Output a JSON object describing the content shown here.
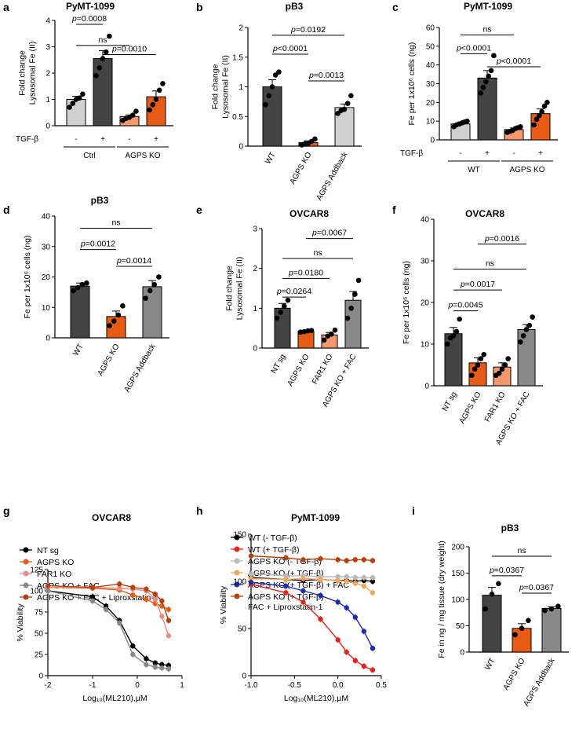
{
  "colors": {
    "black": "#000000",
    "light_gray": "#d0d0d0",
    "dark_gray": "#444444",
    "mid_gray": "#888888",
    "orange": "#e85b14",
    "light_orange": "#f4996b",
    "pink": "#ef8a8a",
    "red": "#e8221a",
    "blue": "#1f2bb2",
    "brown": "#b8400a",
    "peach": "#f5a55b",
    "silver": "#b9b9b9"
  },
  "chart_data": [
    {
      "id": "a",
      "type": "bar",
      "letter": "a",
      "title": "PyMT-1099",
      "ylabel": [
        "Fold change",
        "Lysosomal Fe (II)"
      ],
      "ylim": [
        0,
        4
      ],
      "yticks": [
        0,
        1,
        2,
        3,
        4
      ],
      "treatment_label": "TGF-β",
      "bars": [
        {
          "sign": "-",
          "value": 1.0,
          "err": 0.12,
          "fill": "#d0d0d0",
          "points": [
            0.7,
            0.85,
            1.0,
            1.05,
            1.2
          ]
        },
        {
          "sign": "+",
          "value": 2.55,
          "err": 0.3,
          "fill": "#444444",
          "points": [
            1.9,
            2.2,
            2.55,
            2.8,
            3.4
          ]
        },
        {
          "sign": "-",
          "value": 0.35,
          "err": 0.06,
          "fill": "#f4996b",
          "points": [
            0.2,
            0.28,
            0.32,
            0.4,
            0.55
          ]
        },
        {
          "sign": "+",
          "value": 1.1,
          "err": 0.22,
          "fill": "#e85b14",
          "points": [
            0.6,
            0.8,
            1.0,
            1.35,
            1.6
          ]
        }
      ],
      "groups": [
        {
          "label": "Ctrl",
          "from": 0,
          "to": 1
        },
        {
          "label": "AGPS KO",
          "from": 2,
          "to": 3
        }
      ],
      "comparisons": [
        {
          "from": 0,
          "to": 1,
          "y": 3.85,
          "label": "p=0.0008"
        },
        {
          "from": 0,
          "to": 2,
          "y": 3.05,
          "label": "ns"
        },
        {
          "from": 1,
          "to": 3,
          "y": 2.7,
          "label": "p=0.0010"
        }
      ]
    },
    {
      "id": "b",
      "type": "bar",
      "letter": "b",
      "title": "pB3",
      "ylabel": [
        "Fold change",
        "Lysosomal Fe (II)"
      ],
      "ylim": [
        0,
        2.0
      ],
      "yticks": [
        0.0,
        0.5,
        1.0,
        1.5,
        2.0
      ],
      "categories": [
        "WT",
        "AGPS KO",
        "AGPS Addback"
      ],
      "bars": [
        {
          "value": 1.0,
          "err": 0.12,
          "fill": "#444444",
          "points": [
            0.7,
            0.85,
            1.0,
            1.2,
            1.25
          ]
        },
        {
          "value": 0.06,
          "err": 0.03,
          "fill": "#e85b14",
          "points": [
            0.02,
            0.04,
            0.05,
            0.08,
            0.12
          ]
        },
        {
          "value": 0.65,
          "err": 0.06,
          "fill": "#d0d0d0",
          "points": [
            0.55,
            0.6,
            0.62,
            0.72,
            0.85
          ]
        }
      ],
      "comparisons": [
        {
          "from": 0,
          "to": 2,
          "y": 1.87,
          "label": "p=0.0192"
        },
        {
          "from": 0,
          "to": 1,
          "y": 1.55,
          "label": "p<0.0001"
        },
        {
          "from": 1,
          "to": 2,
          "y": 1.1,
          "label": "p=0.0013"
        }
      ]
    },
    {
      "id": "c",
      "type": "bar",
      "letter": "c",
      "title": "PyMT-1099",
      "ylabel": [
        "Fe per 1x10⁶ cells (ng)"
      ],
      "ylim": [
        0,
        60
      ],
      "yticks": [
        0,
        10,
        20,
        30,
        40,
        50,
        60
      ],
      "treatment_label": "TGF-β",
      "bars": [
        {
          "sign": "-",
          "value": 8.5,
          "err": 0.7,
          "fill": "#d0d0d0",
          "points": [
            7,
            8,
            8.5,
            9,
            9.5,
            10
          ]
        },
        {
          "sign": "+",
          "value": 33,
          "err": 4,
          "fill": "#444444",
          "points": [
            25,
            28,
            31,
            34,
            37,
            45
          ]
        },
        {
          "sign": "-",
          "value": 5.5,
          "err": 0.8,
          "fill": "#f4996b",
          "points": [
            4,
            4.5,
            5,
            6,
            6.5,
            7
          ]
        },
        {
          "sign": "+",
          "value": 14,
          "err": 2.5,
          "fill": "#e85b14",
          "points": [
            8,
            11,
            13,
            15,
            18,
            20
          ]
        }
      ],
      "groups": [
        {
          "label": "WT",
          "from": 0,
          "to": 1
        },
        {
          "label": "AGPS KO",
          "from": 2,
          "to": 3
        }
      ],
      "comparisons": [
        {
          "from": 0,
          "to": 2,
          "y": 56,
          "label": "ns"
        },
        {
          "from": 0,
          "to": 1,
          "y": 46,
          "label": "p<0.0001"
        },
        {
          "from": 1,
          "to": 3,
          "y": 39,
          "label": "p<0.0001"
        }
      ]
    },
    {
      "id": "d",
      "type": "bar",
      "letter": "d",
      "title": "pB3",
      "ylabel": [
        "Fe per 1x10⁶ cells (ng)"
      ],
      "ylim": [
        0,
        40
      ],
      "yticks": [
        0,
        10,
        20,
        30,
        40
      ],
      "categories": [
        "WT",
        "AGPS KO",
        "AGPS Addback"
      ],
      "bars": [
        {
          "value": 17,
          "err": 1,
          "fill": "#444444",
          "points": [
            15.5,
            16.5,
            17.5,
            18
          ]
        },
        {
          "value": 7,
          "err": 1.8,
          "fill": "#e85b14",
          "points": [
            4,
            5.5,
            7.5,
            10.5
          ]
        },
        {
          "value": 16.8,
          "err": 2,
          "fill": "#888888",
          "points": [
            13,
            15.5,
            17.5,
            20
          ]
        }
      ],
      "comparisons": [
        {
          "from": 0,
          "to": 2,
          "y": 36,
          "label": "ns"
        },
        {
          "from": 0,
          "to": 1,
          "y": 29,
          "label": "p=0.0012"
        },
        {
          "from": 1,
          "to": 2,
          "y": 23.5,
          "label": "p=0.0014"
        }
      ]
    },
    {
      "id": "e",
      "type": "bar",
      "letter": "e",
      "title": "OVCAR8",
      "ylabel": [
        "Fold change",
        "Lysosomal Fe (II)"
      ],
      "ylim": [
        0,
        3
      ],
      "yticks": [
        0,
        1,
        2,
        3
      ],
      "categories": [
        "NT sg",
        "AGPS KO",
        "FAR1 KO",
        "AGPS KO + FAC"
      ],
      "bars": [
        {
          "value": 1.0,
          "err": 0.12,
          "fill": "#444444",
          "points": [
            0.75,
            0.9,
            1.05,
            1.2
          ]
        },
        {
          "value": 0.42,
          "err": 0.02,
          "fill": "#e85b14",
          "points": [
            0.4,
            0.41,
            0.43,
            0.44
          ]
        },
        {
          "value": 0.33,
          "err": 0.06,
          "fill": "#f4996b",
          "points": [
            0.2,
            0.3,
            0.35,
            0.45
          ]
        },
        {
          "value": 1.2,
          "err": 0.22,
          "fill": "#888888",
          "points": [
            0.75,
            1.0,
            1.35,
            1.7
          ]
        }
      ],
      "comparisons": [
        {
          "from": 1,
          "to": 3,
          "y": 2.75,
          "label": "p=0.0067"
        },
        {
          "from": 0,
          "to": 3,
          "y": 2.25,
          "label": "ns"
        },
        {
          "from": 0,
          "to": 2,
          "y": 1.75,
          "label": "p=0.0180"
        },
        {
          "from": 0,
          "to": 1,
          "y": 1.28,
          "label": "p=0.0264"
        }
      ]
    },
    {
      "id": "f",
      "type": "bar",
      "letter": "f",
      "title": "OVCAR8",
      "ylabel": [
        "Fe per 1x10⁶ cells (ng)"
      ],
      "ylim": [
        0,
        40
      ],
      "yticks": [
        0,
        10,
        20,
        30,
        40
      ],
      "categories": [
        "NT sg",
        "AGPS KO",
        "FAR1 KO",
        "AGPS KO + FAC"
      ],
      "bars": [
        {
          "value": 12.5,
          "err": 1.5,
          "fill": "#444444",
          "points": [
            10,
            11.5,
            12,
            13,
            16
          ]
        },
        {
          "value": 5.5,
          "err": 1.2,
          "fill": "#e85b14",
          "points": [
            2.5,
            4,
            5,
            6.5,
            7.5
          ]
        },
        {
          "value": 4.5,
          "err": 1.0,
          "fill": "#f4996b",
          "points": [
            2.5,
            3,
            4,
            5,
            6.5
          ]
        },
        {
          "value": 13.5,
          "err": 1.2,
          "fill": "#888888",
          "points": [
            10.5,
            12,
            13.5,
            14.5,
            16.5
          ]
        }
      ],
      "comparisons": [
        {
          "from": 1,
          "to": 3,
          "y": 34,
          "label": "p=0.0016"
        },
        {
          "from": 0,
          "to": 3,
          "y": 28,
          "label": "ns"
        },
        {
          "from": 0,
          "to": 2,
          "y": 23,
          "label": "p=0.0017"
        },
        {
          "from": 0,
          "to": 1,
          "y": 18,
          "label": "p=0.0045"
        }
      ]
    },
    {
      "id": "g",
      "type": "line",
      "letter": "g",
      "title": "OVCAR8",
      "xlabel": "Log₁₀(ML210),µM",
      "ylabel": "% Viability",
      "xlim": [
        -2,
        1
      ],
      "xticks": [
        -2,
        -1,
        0,
        1
      ],
      "ylim": [
        0,
        125
      ],
      "yticks": [
        0,
        25,
        50,
        75,
        100,
        125
      ],
      "series": [
        {
          "name": "NT sg",
          "color": "#000000",
          "x": [
            -2,
            -1,
            -0.7,
            -0.4,
            -0.1,
            0.2,
            0.4,
            0.55,
            0.7
          ],
          "y": [
            100,
            93,
            82,
            65,
            35,
            20,
            15,
            13,
            12
          ]
        },
        {
          "name": "AGPS KO",
          "color": "#e85b14",
          "x": [
            -2,
            -1,
            -0.4,
            -0.1,
            0.2,
            0.4,
            0.55,
            0.7
          ],
          "y": [
            104,
            103,
            101,
            95,
            90,
            85,
            82,
            78
          ]
        },
        {
          "name": "FAR1 KO",
          "color": "#ef8a8a",
          "x": [
            -2,
            -1,
            -0.4,
            -0.1,
            0.2,
            0.4,
            0.55,
            0.7
          ],
          "y": [
            104,
            104,
            103,
            102,
            100,
            90,
            70,
            47
          ]
        },
        {
          "name": "AGPS KO + FAC",
          "color": "#888888",
          "x": [
            -2,
            -1,
            -0.7,
            -0.4,
            -0.1,
            0.2,
            0.4,
            0.55,
            0.7
          ],
          "y": [
            100,
            88,
            78,
            62,
            25,
            13,
            10,
            9,
            8
          ]
        },
        {
          "name": "AGPS KO + FAC + Liproxstatin-1",
          "color": "#b8400a",
          "x": [
            -2,
            -1,
            -0.4,
            -0.1,
            0.2,
            0.4,
            0.55,
            0.7
          ],
          "y": [
            106,
            104,
            108,
            104,
            102,
            96,
            88,
            65
          ]
        }
      ]
    },
    {
      "id": "h",
      "type": "line",
      "letter": "h",
      "title": "PyMT-1099",
      "xlabel": "Log₁₀(ML210),µM",
      "ylabel": "% Viability",
      "xlim": [
        -1.0,
        0.5
      ],
      "xticks": [
        -1.0,
        -0.5,
        0.0,
        0.5
      ],
      "ylim": [
        0,
        150
      ],
      "yticks": [
        0,
        50,
        100,
        150
      ],
      "series": [
        {
          "name": "WT (- TGF-β)",
          "color": "#000000",
          "x": [
            -1,
            -0.6,
            -0.4,
            -0.2,
            0,
            0.1,
            0.2,
            0.3,
            0.4
          ],
          "y": [
            104,
            102,
            101,
            102,
            101,
            101,
            100,
            101,
            100
          ]
        },
        {
          "name": "WT (+ TGF-β)",
          "color": "#e8221a",
          "x": [
            -1,
            -0.6,
            -0.4,
            -0.2,
            0,
            0.1,
            0.2,
            0.3,
            0.4
          ],
          "y": [
            97,
            88,
            78,
            60,
            38,
            25,
            16,
            10,
            6
          ]
        },
        {
          "name": "AGPS KO (- TGF-β)",
          "color": "#b9b9b9",
          "x": [
            -1,
            -0.6,
            -0.4,
            -0.2,
            0,
            0.1,
            0.2,
            0.3,
            0.4
          ],
          "y": [
            108,
            106,
            106,
            105,
            105,
            105,
            104,
            104,
            104
          ]
        },
        {
          "name": "AGPS KO (+ TGF-β)",
          "color": "#f5a55b",
          "x": [
            -1,
            -0.6,
            -0.4,
            -0.2,
            0,
            0.1,
            0.2,
            0.3,
            0.4
          ],
          "y": [
            103,
            102,
            103,
            102,
            101,
            100,
            98,
            95,
            88
          ]
        },
        {
          "name": "AGPS KO (+ TGF-β) + FAC",
          "color": "#1f2bb2",
          "x": [
            -1,
            -0.6,
            -0.4,
            -0.2,
            0,
            0.1,
            0.2,
            0.3,
            0.4
          ],
          "y": [
            99,
            95,
            90,
            85,
            78,
            72,
            62,
            47,
            29
          ]
        },
        {
          "name": "AGPS KO (+ TGF-β) FAC + Liproxstatin-1",
          "color": "#b8400a",
          "legend_lines": [
            "AGPS KO (+ TGF-β)",
            "FAC + Liproxstatin-1"
          ],
          "x": [
            -1,
            -0.6,
            -0.4,
            -0.2,
            0,
            0.1,
            0.2,
            0.3,
            0.4
          ],
          "y": [
            127,
            125,
            123,
            124,
            123,
            122,
            123,
            123,
            122
          ]
        }
      ]
    },
    {
      "id": "i",
      "type": "bar",
      "letter": "i",
      "title": "pB3",
      "ylabel": [
        "Fe in ng / mg tissue (dry weight)"
      ],
      "ylim": [
        0,
        200
      ],
      "yticks": [
        0,
        50,
        100,
        150,
        200
      ],
      "categories": [
        "WT",
        "AGPS KO",
        "AGPS Addback"
      ],
      "bars": [
        {
          "value": 108,
          "err": 15,
          "fill": "#444444",
          "points": [
            82,
            110,
            130
          ]
        },
        {
          "value": 45,
          "err": 9,
          "fill": "#e85b14",
          "points": [
            33,
            45,
            60
          ]
        },
        {
          "value": 83,
          "err": 3,
          "fill": "#888888",
          "points": [
            79,
            82,
            87
          ]
        }
      ],
      "comparisons": [
        {
          "from": 0,
          "to": 2,
          "y": 182,
          "label": "ns"
        },
        {
          "from": 0,
          "to": 1,
          "y": 145,
          "label": "p=0.0367"
        },
        {
          "from": 1,
          "to": 2,
          "y": 112,
          "label": "p=0.0367"
        }
      ]
    }
  ]
}
